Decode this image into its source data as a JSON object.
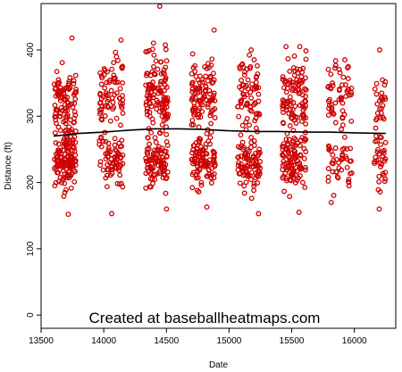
{
  "chart_data": {
    "type": "scatter",
    "title": "",
    "xlabel": "Date",
    "ylabel": "Distance (ft)",
    "xlim": [
      13500,
      16330
    ],
    "ylim": [
      -20,
      470
    ],
    "xticks": [
      13500,
      14000,
      14500,
      15000,
      15500,
      16000
    ],
    "yticks": [
      0,
      100,
      200,
      300,
      400
    ],
    "grid": false,
    "legend": "none",
    "watermark": "Created at baseballheatmaps.com",
    "point_color": "#cc0000",
    "trend_color": "#000000",
    "seasons": [
      {
        "x_start": 13605,
        "x_end": 13780,
        "count": 230,
        "y_min": 152,
        "y_max": 418,
        "mean": 262,
        "sd": 52
      },
      {
        "x_start": 13965,
        "x_end": 14155,
        "count": 140,
        "y_min": 153,
        "y_max": 415,
        "mean": 272,
        "sd": 60
      },
      {
        "x_start": 14335,
        "x_end": 14515,
        "count": 210,
        "y_min": 160,
        "y_max": 466,
        "mean": 282,
        "sd": 65
      },
      {
        "x_start": 14700,
        "x_end": 14890,
        "count": 200,
        "y_min": 163,
        "y_max": 430,
        "mean": 272,
        "sd": 60
      },
      {
        "x_start": 15070,
        "x_end": 15250,
        "count": 160,
        "y_min": 153,
        "y_max": 400,
        "mean": 276,
        "sd": 58
      },
      {
        "x_start": 15425,
        "x_end": 15615,
        "count": 200,
        "y_min": 155,
        "y_max": 405,
        "mean": 272,
        "sd": 60
      },
      {
        "x_start": 15790,
        "x_end": 15980,
        "count": 100,
        "y_min": 170,
        "y_max": 385,
        "mean": 274,
        "sd": 55
      },
      {
        "x_start": 16160,
        "x_end": 16250,
        "count": 60,
        "y_min": 160,
        "y_max": 400,
        "mean": 268,
        "sd": 60
      }
    ],
    "trend": {
      "x": [
        13600,
        13800,
        14000,
        14200,
        14400,
        14600,
        14800,
        15000,
        15200,
        15400,
        15600,
        15800,
        16000,
        16250
      ],
      "y": [
        270,
        274,
        276,
        279,
        281,
        281,
        280,
        278,
        277,
        277,
        276,
        276,
        275,
        274
      ]
    }
  }
}
